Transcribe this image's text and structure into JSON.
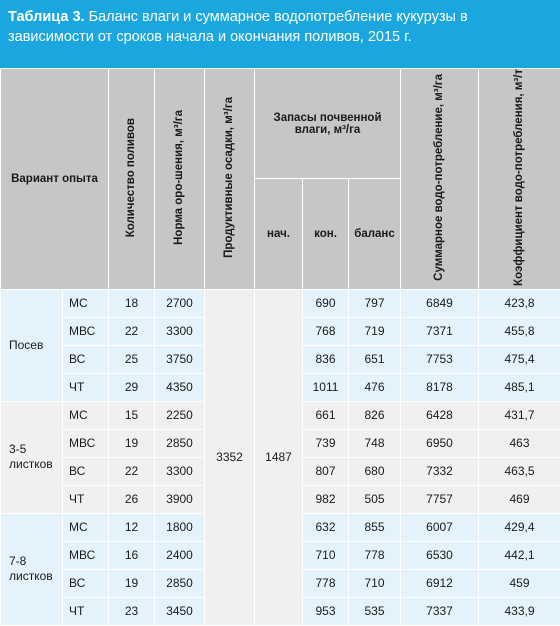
{
  "caption": {
    "label": "Таблица 3.",
    "text": " Баланс влаги и суммарное водопотребление кукурузы в зависимости от сроков начала и окончания поливов, 2015 г."
  },
  "header": {
    "variant": "Вариант опыта",
    "count": "Количество поливов",
    "norm": "Норма оро-шения, м³/га",
    "precip": "Продуктивные осадки, м³/га",
    "reserves": "Запасы почвенной влаги, м³/га",
    "start": "нач.",
    "end": "кон.",
    "balance": "баланс",
    "total": "Суммарное водо-потребление, м³/га",
    "coef": "Коэффициент водо-потребления, м³/т"
  },
  "shared": {
    "precip": "3352",
    "start": "1487"
  },
  "groups": [
    {
      "name": "Посев",
      "rows": [
        {
          "sym": "МС",
          "count": "18",
          "norm": "2700",
          "end": "690",
          "balance": "797",
          "total": "6849",
          "coef": "423,8"
        },
        {
          "sym": "МВС",
          "count": "22",
          "norm": "3300",
          "end": "768",
          "balance": "719",
          "total": "7371",
          "coef": "455,8"
        },
        {
          "sym": "ВС",
          "count": "25",
          "norm": "3750",
          "end": "836",
          "balance": "651",
          "total": "7753",
          "coef": "475,4"
        },
        {
          "sym": "ЧТ",
          "count": "29",
          "norm": "4350",
          "end": "1011",
          "balance": "476",
          "total": "8178",
          "coef": "485,1"
        }
      ]
    },
    {
      "name": "3-5 листков",
      "rows": [
        {
          "sym": "МС",
          "count": "15",
          "norm": "2250",
          "end": "661",
          "balance": "826",
          "total": "6428",
          "coef": "431,7"
        },
        {
          "sym": "МВС",
          "count": "19",
          "norm": "2850",
          "end": "739",
          "balance": "748",
          "total": "6950",
          "coef": "463"
        },
        {
          "sym": "ВС",
          "count": "22",
          "norm": "3300",
          "end": "807",
          "balance": "680",
          "total": "7332",
          "coef": "463,5"
        },
        {
          "sym": "ЧТ",
          "count": "26",
          "norm": "3900",
          "end": "982",
          "balance": "505",
          "total": "7757",
          "coef": "469"
        }
      ]
    },
    {
      "name": "7-8 листков",
      "rows": [
        {
          "sym": "МС",
          "count": "12",
          "norm": "1800",
          "end": "632",
          "balance": "855",
          "total": "6007",
          "coef": "429,4"
        },
        {
          "sym": "МВС",
          "count": "16",
          "norm": "2400",
          "end": "710",
          "balance": "778",
          "total": "6530",
          "coef": "442,1"
        },
        {
          "sym": "ВС",
          "count": "19",
          "norm": "2850",
          "end": "778",
          "balance": "710",
          "total": "6912",
          "coef": "459"
        },
        {
          "sym": "ЧТ",
          "count": "23",
          "norm": "3450",
          "end": "953",
          "balance": "535",
          "total": "7337",
          "coef": "433,9"
        }
      ]
    }
  ]
}
